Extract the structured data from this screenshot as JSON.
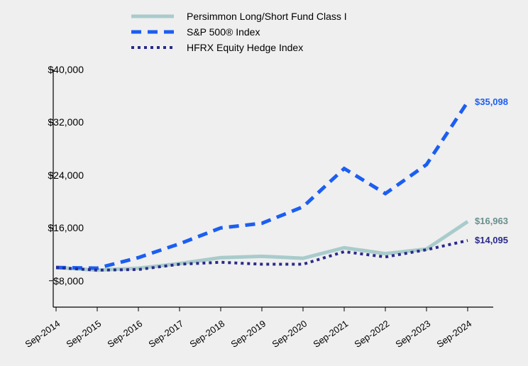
{
  "legend": {
    "items": [
      {
        "label": "Persimmon Long/Short Fund Class I",
        "color": "#a9cbcb",
        "dash": "",
        "width": 5
      },
      {
        "label": "S&P 500® Index",
        "color": "#1b5ef2",
        "dash": "14,9",
        "width": 5
      },
      {
        "label": "HFRX Equity Hedge Index",
        "color": "#2a2a8a",
        "dash": "4,5",
        "width": 4
      }
    ]
  },
  "chart": {
    "background_color": "#efefef",
    "axis_color": "#000000",
    "axis_width": 1.2,
    "ylim": [
      4000,
      40000
    ],
    "y_ticks": [
      8000,
      16000,
      24000,
      32000,
      40000
    ],
    "y_tick_labels": [
      "$8,000",
      "$16,000",
      "$24,000",
      "$32,000",
      "$40,000"
    ],
    "x_labels": [
      "Sep-2014",
      "Sep-2015",
      "Sep-2016",
      "Sep-2017",
      "Sep-2018",
      "Sep-2019",
      "Sep-2020",
      "Sep-2021",
      "Sep-2022",
      "Sep-2023",
      "Sep-2024"
    ],
    "x_count": 11,
    "series": [
      {
        "name": "persimmon",
        "color": "#a9cbcb",
        "dash": "",
        "width": 5,
        "values": [
          10000,
          9600,
          9900,
          10600,
          11500,
          11700,
          11400,
          13000,
          12100,
          12800,
          16963
        ],
        "end_label": "$16,963",
        "end_label_color": "#6a8e8e"
      },
      {
        "name": "sp500",
        "color": "#1b5ef2",
        "dash": "14,9",
        "width": 5,
        "values": [
          10000,
          9900,
          11500,
          13600,
          16000,
          16700,
          19200,
          25000,
          21200,
          25600,
          35098
        ],
        "end_label": "$35,098",
        "end_label_color": "#1b5ef2"
      },
      {
        "name": "hfrx",
        "color": "#2a2a8a",
        "dash": "4,5",
        "width": 4,
        "values": [
          10000,
          9600,
          9700,
          10500,
          10800,
          10500,
          10500,
          12400,
          11600,
          12700,
          14095
        ],
        "end_label": "$14,095",
        "end_label_color": "#2a2a8a"
      }
    ]
  }
}
